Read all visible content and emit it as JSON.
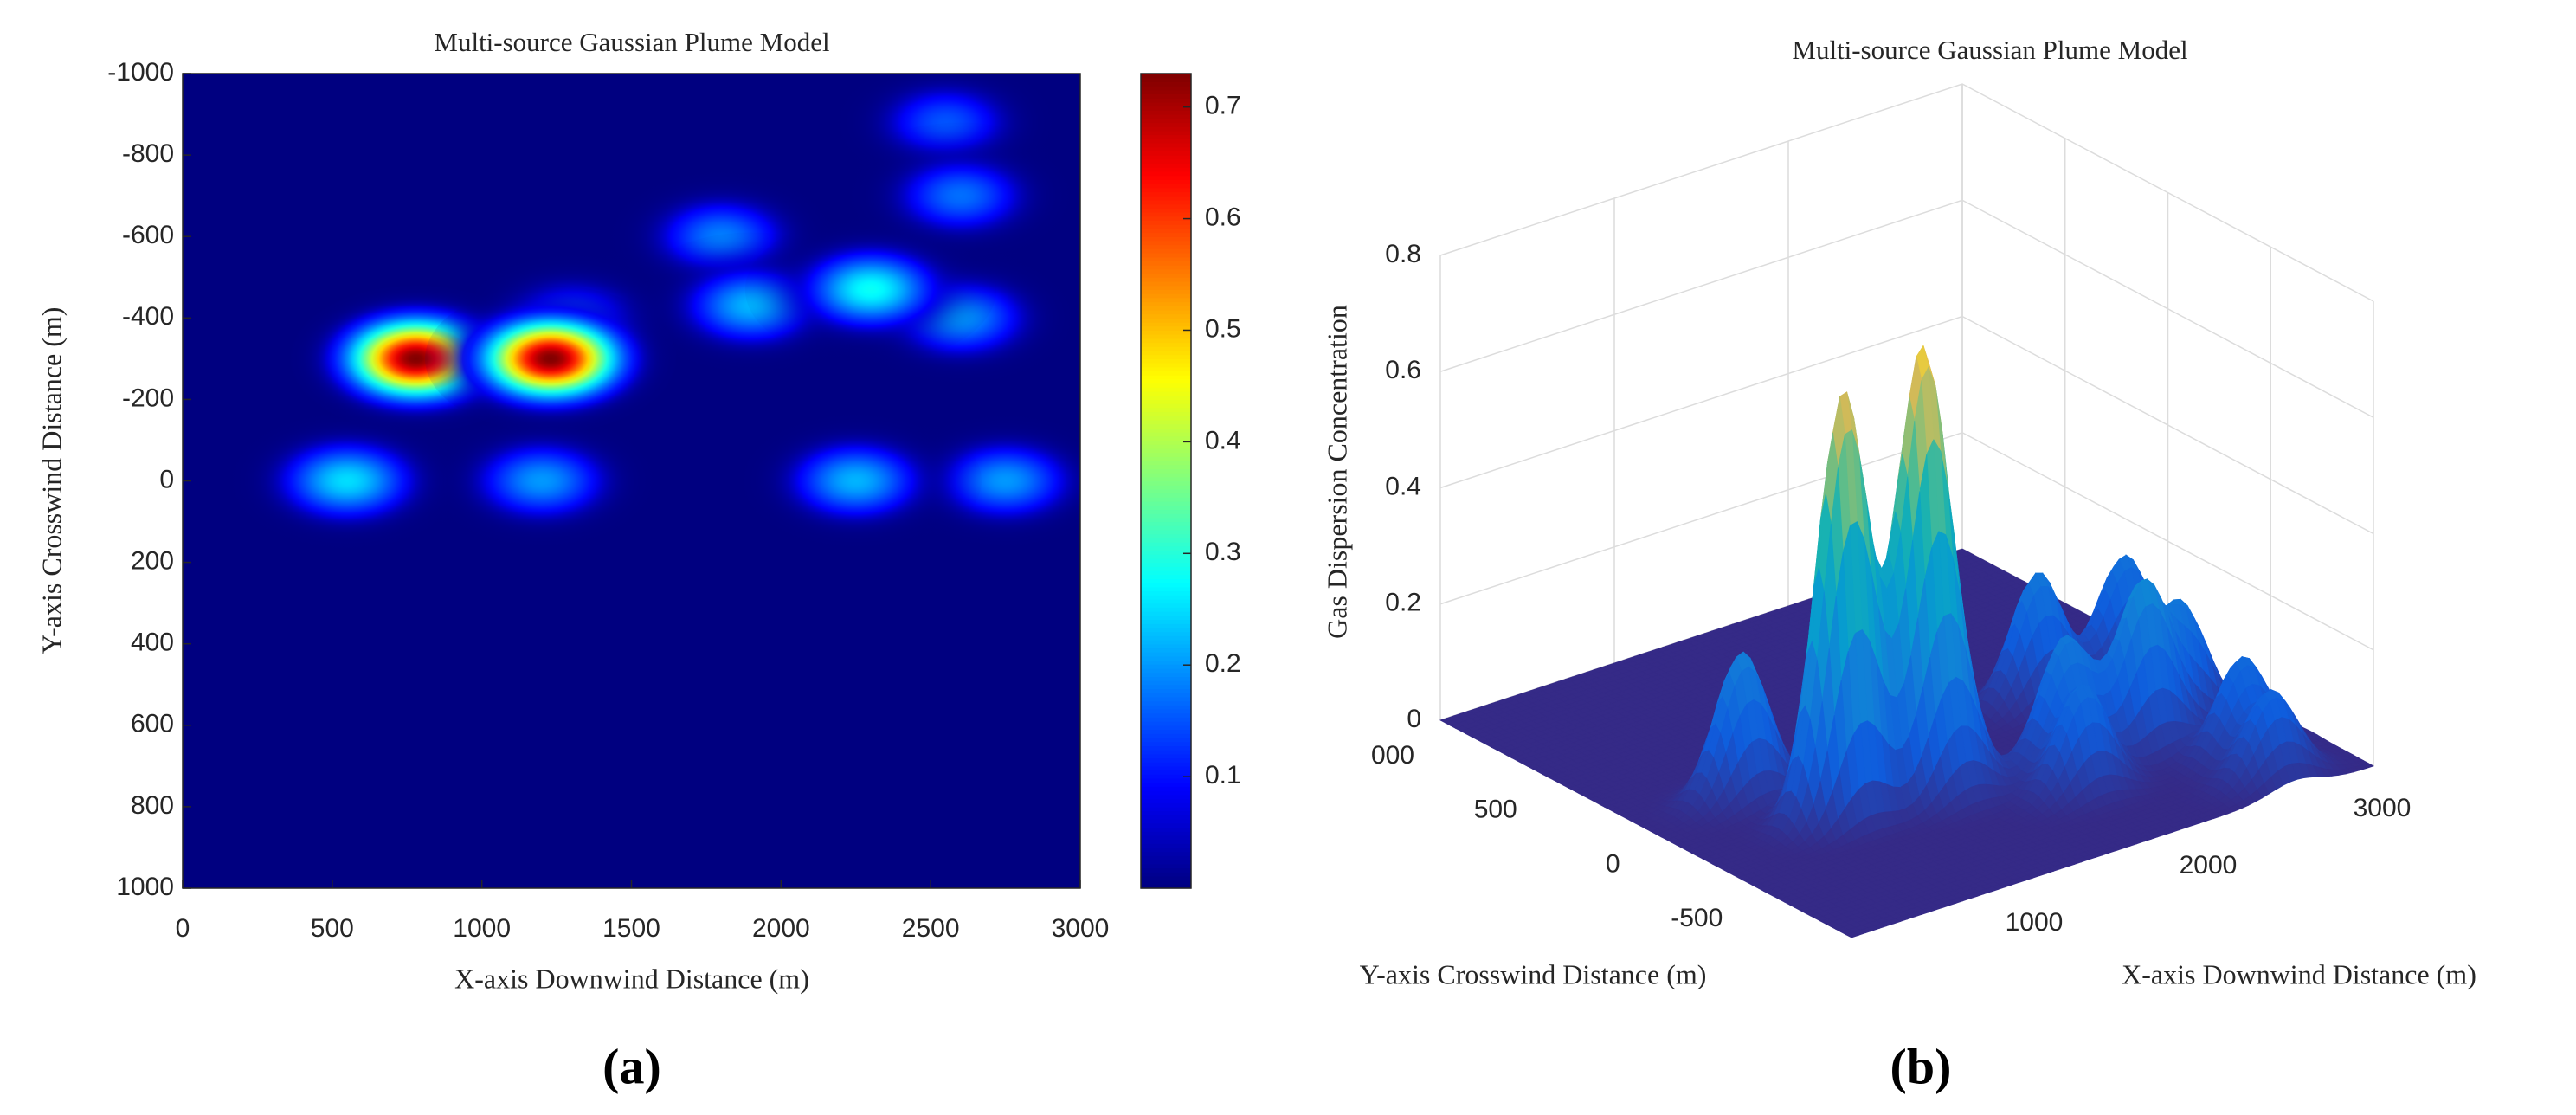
{
  "chart_data": [
    {
      "type": "heatmap",
      "title": "Multi-source Gaussian Plume Model",
      "xlabel": "X-axis Downwind Distance (m)",
      "ylabel": "Y-axis Crosswind Distance (m)",
      "x": [
        780,
        1230,
        550,
        1200,
        2250,
        2750,
        2300,
        1900,
        1800,
        2600,
        2550,
        2600,
        1300
      ],
      "y": [
        -300,
        -300,
        0,
        0,
        0,
        0,
        -470,
        -430,
        -600,
        -700,
        -880,
        -400,
        -400
      ],
      "values": [
        0.73,
        0.73,
        0.25,
        0.2,
        0.22,
        0.2,
        0.28,
        0.22,
        0.18,
        0.17,
        0.15,
        0.2,
        0.15
      ],
      "xlim": [
        0,
        3000
      ],
      "xticks": [
        0,
        500,
        1000,
        1500,
        2000,
        2500,
        3000
      ],
      "ylim": [
        -1000,
        1000
      ],
      "yticks": [
        -1000,
        -800,
        -600,
        -400,
        -200,
        0,
        200,
        400,
        600,
        800,
        1000
      ],
      "clim": [
        0,
        0.73
      ],
      "cticks": [
        0.1,
        0.2,
        0.3,
        0.4,
        0.5,
        0.6,
        0.7
      ],
      "colormap": "jet",
      "panel": "(a)"
    },
    {
      "type": "surface",
      "title": "Multi-source Gaussian Plume Model",
      "xlabel": "X-axis Downwind Distance (m)",
      "ylabel": "Y-axis Crosswind Distance (m)",
      "zlabel": "Gas Dispersion Concentration",
      "xlim": [
        0,
        3000
      ],
      "xticks": [
        1000,
        2000,
        3000
      ],
      "ylim": [
        -1000,
        1000
      ],
      "yticks": [
        {
          "value": 1000,
          "label": "000"
        },
        500,
        0,
        -500
      ],
      "zlim": [
        0,
        0.8
      ],
      "zticks": [
        0,
        0.2,
        0.4,
        0.6,
        0.8
      ],
      "colormap": "parula",
      "grid": true,
      "panel": "(b)"
    }
  ]
}
